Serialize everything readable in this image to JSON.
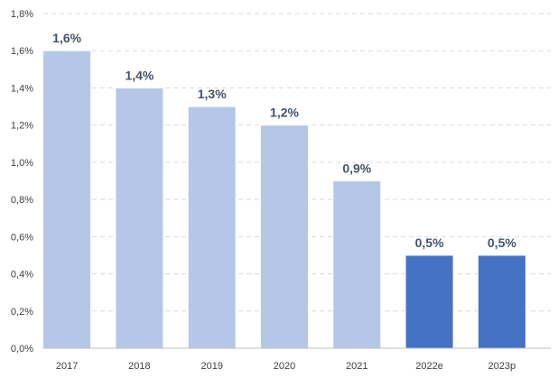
{
  "chart_data": {
    "type": "bar",
    "categories": [
      "2017",
      "2018",
      "2019",
      "2020",
      "2021",
      "2022e",
      "2023p"
    ],
    "values": [
      1.6,
      1.4,
      1.3,
      1.2,
      0.9,
      0.5,
      0.5
    ],
    "data_labels": [
      "1,6%",
      "1,4%",
      "1,3%",
      "1,2%",
      "0,9%",
      "0,5%",
      "0,5%"
    ],
    "y_ticks": [
      {
        "value": 0.0,
        "label": "0,0%"
      },
      {
        "value": 0.2,
        "label": "0,2%"
      },
      {
        "value": 0.4,
        "label": "0,4%"
      },
      {
        "value": 0.6,
        "label": "0,6%"
      },
      {
        "value": 0.8,
        "label": "0,8%"
      },
      {
        "value": 1.0,
        "label": "1,0%"
      },
      {
        "value": 1.2,
        "label": "1,2%"
      },
      {
        "value": 1.4,
        "label": "1,4%"
      },
      {
        "value": 1.6,
        "label": "1,6%"
      },
      {
        "value": 1.8,
        "label": "1,8%"
      }
    ],
    "ylim": [
      0,
      1.8
    ],
    "grid": true,
    "grid_style": "dashed",
    "title": "",
    "xlabel": "",
    "ylabel": "",
    "colors": {
      "actual": "#b4c7e7",
      "projected": "#4472c4",
      "grid": "#d9d9d9",
      "axis": "#bfbfbf",
      "tick_text": "#404040",
      "data_label_text": "#44546a"
    },
    "bar_color_keys": [
      "actual",
      "actual",
      "actual",
      "actual",
      "actual",
      "projected",
      "projected"
    ]
  }
}
